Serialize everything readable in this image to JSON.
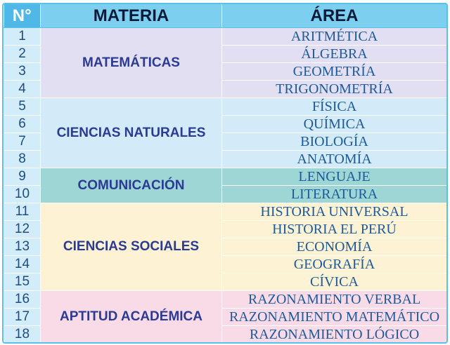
{
  "header": {
    "num_label": "N°",
    "materia_label": "MATERIA",
    "area_label": "ÁREA"
  },
  "groups": [
    {
      "materia": "MATEMÁTICAS",
      "color": "#e3dff2",
      "rows": [
        {
          "n": "1",
          "area": "ARITMÉTICA"
        },
        {
          "n": "2",
          "area": "ÁLGEBRA"
        },
        {
          "n": "3",
          "area": "GEOMETRÍA"
        },
        {
          "n": "4",
          "area": "TRIGONOMETRÍA"
        }
      ]
    },
    {
      "materia": "CIENCIAS NATURALES",
      "color": "#d3ebf8",
      "rows": [
        {
          "n": "5",
          "area": "FÍSICA"
        },
        {
          "n": "6",
          "area": "QUÍMICA"
        },
        {
          "n": "7",
          "area": "BIOLOGÍA"
        },
        {
          "n": "8",
          "area": "ANATOMÍA"
        }
      ]
    },
    {
      "materia": "COMUNICACIÓN",
      "color": "#9ed6d5",
      "rows": [
        {
          "n": "9",
          "area": "LENGUAJE"
        },
        {
          "n": "10",
          "area": "LITERATURA"
        }
      ]
    },
    {
      "materia": "CIENCIAS SOCIALES",
      "color": "#fdf2d3",
      "rows": [
        {
          "n": "11",
          "area": "HISTORIA UNIVERSAL"
        },
        {
          "n": "12",
          "area": "HISTORIA EL PERÚ"
        },
        {
          "n": "13",
          "area": "ECONOMÍA"
        },
        {
          "n": "14",
          "area": "GEOGRAFÍA"
        },
        {
          "n": "15",
          "area": "CÍVICA"
        }
      ]
    },
    {
      "materia": "APTITUD ACADÉMICA",
      "color": "#f9dbe8",
      "rows": [
        {
          "n": "16",
          "area": "RAZONAMIENTO VERBAL"
        },
        {
          "n": "17",
          "area": "RAZONAMIENTO MATEMÁTICO"
        },
        {
          "n": "18",
          "area": "RAZONAMIENTO LÓGICO"
        }
      ]
    }
  ]
}
